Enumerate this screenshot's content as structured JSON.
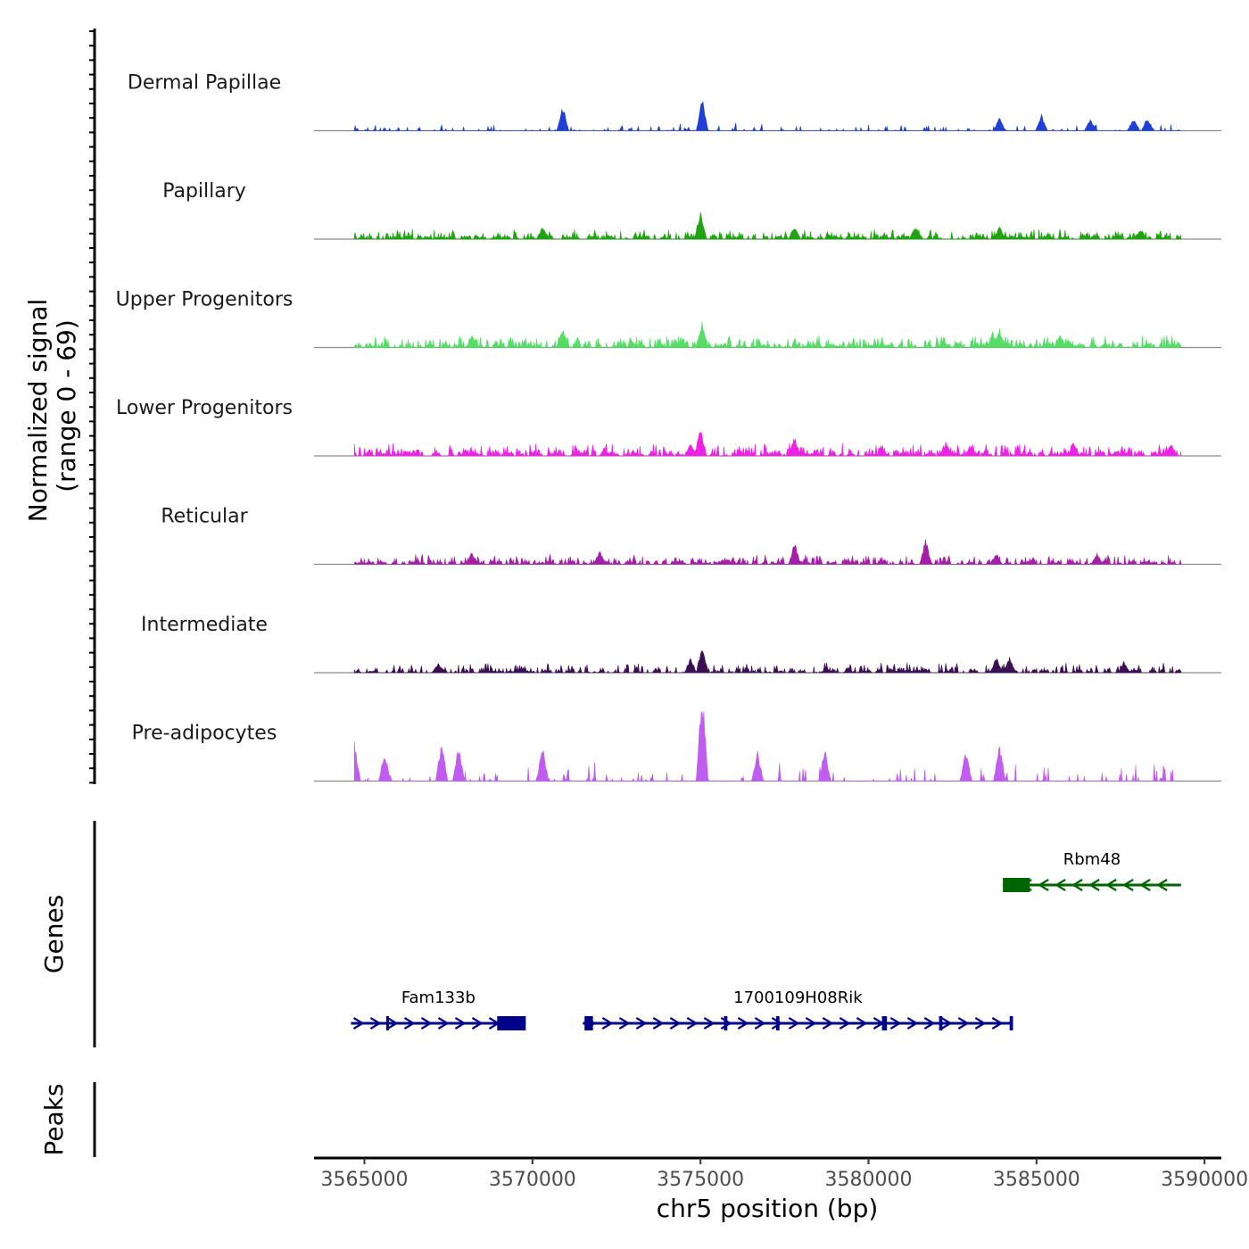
{
  "chart_data": {
    "type": "area",
    "chromosome": "chr5",
    "xlabel": "chr5 position (bp)",
    "xlim": [
      3563500,
      3590500
    ],
    "x_ticks": [
      3565000,
      3570000,
      3575000,
      3580000,
      3585000,
      3590000
    ],
    "x_tick_labels": [
      "3565000",
      "3570000",
      "3575000",
      "3580000",
      "3585000",
      "3590000"
    ],
    "coverage_ylabel_line1": "Normalized signal",
    "coverage_ylabel_line2": "(range 0 - 69)",
    "ylim": [
      0,
      69
    ],
    "coverage_range": [
      3564700,
      3589300
    ],
    "series": [
      {
        "name": "Dermal Papillae",
        "color": "#1f3fd6",
        "seed": 11,
        "density": 0.45,
        "base": 3,
        "peaks": [
          [
            3570900,
            18
          ],
          [
            3575050,
            24
          ],
          [
            3585150,
            12
          ],
          [
            3583900,
            10
          ],
          [
            3586600,
            9
          ],
          [
            3588300,
            10
          ],
          [
            3587900,
            9
          ]
        ]
      },
      {
        "name": "Papillary",
        "color": "#1fa310",
        "seed": 23,
        "density": 0.9,
        "base": 4,
        "peaks": [
          [
            3575000,
            22
          ],
          [
            3577800,
            10
          ],
          [
            3581400,
            10
          ],
          [
            3583900,
            9
          ],
          [
            3570300,
            9
          ],
          [
            3588100,
            8
          ]
        ]
      },
      {
        "name": "Upper Progenitors",
        "color": "#55dd66",
        "seed": 37,
        "density": 0.9,
        "base": 5,
        "peaks": [
          [
            3575050,
            19
          ],
          [
            3570900,
            15
          ],
          [
            3583900,
            14
          ],
          [
            3583700,
            12
          ],
          [
            3585700,
            10
          ],
          [
            3568200,
            9
          ]
        ]
      },
      {
        "name": "Lower Progenitors",
        "color": "#ee22e6",
        "seed": 41,
        "density": 0.92,
        "base": 5,
        "peaks": [
          [
            3575000,
            22
          ],
          [
            3577800,
            14
          ],
          [
            3574700,
            10
          ],
          [
            3582300,
            10
          ],
          [
            3586100,
            10
          ],
          [
            3589000,
            9
          ]
        ]
      },
      {
        "name": "Reticular",
        "color": "#a41ea8",
        "seed": 53,
        "density": 0.88,
        "base": 4,
        "peaks": [
          [
            3581700,
            19
          ],
          [
            3577800,
            16
          ],
          [
            3572000,
            10
          ],
          [
            3568200,
            9
          ],
          [
            3583800,
            8
          ],
          [
            3586800,
            8
          ]
        ]
      },
      {
        "name": "Intermediate",
        "color": "#3b0f52",
        "seed": 67,
        "density": 0.85,
        "base": 4,
        "peaks": [
          [
            3575050,
            20
          ],
          [
            3584200,
            13
          ],
          [
            3583800,
            12
          ],
          [
            3574700,
            10
          ],
          [
            3587600,
            8
          ],
          [
            3567200,
            8
          ]
        ]
      },
      {
        "name": "Pre-adipocytes",
        "color": "#c15cf0",
        "seed": 79,
        "density": 0.35,
        "base": 8,
        "peaks": [
          [
            3575050,
            69
          ],
          [
            3564700,
            32
          ],
          [
            3567300,
            32
          ],
          [
            3570300,
            26
          ],
          [
            3583900,
            28
          ],
          [
            3578700,
            25
          ],
          [
            3582900,
            22
          ],
          [
            3565600,
            22
          ],
          [
            3567800,
            26
          ],
          [
            3576700,
            22
          ]
        ]
      }
    ],
    "genes": [
      {
        "name": "Rbm48",
        "strand": "-",
        "color": "#006400",
        "row": 0,
        "start": 3584000,
        "end": 3589300,
        "exons": [
          [
            3584000,
            3584800
          ]
        ]
      },
      {
        "name": "Fam133b",
        "strand": "+",
        "color": "#00008b",
        "row": 1,
        "start": 3564600,
        "end": 3569800,
        "exons": [
          [
            3568950,
            3569800
          ],
          [
            3565650,
            3565700
          ]
        ]
      },
      {
        "name": "1700109H08Rik",
        "strand": "+",
        "color": "#00008b",
        "row": 1,
        "start": 3571500,
        "end": 3584300,
        "exons": [
          [
            3571550,
            3571800
          ],
          [
            3575700,
            3575800
          ],
          [
            3577250,
            3577350
          ],
          [
            3580400,
            3580550
          ],
          [
            3582100,
            3582200
          ],
          [
            3584200,
            3584300
          ]
        ]
      }
    ],
    "panels": {
      "genes_label": "Genes",
      "peaks_label": "Peaks"
    }
  }
}
